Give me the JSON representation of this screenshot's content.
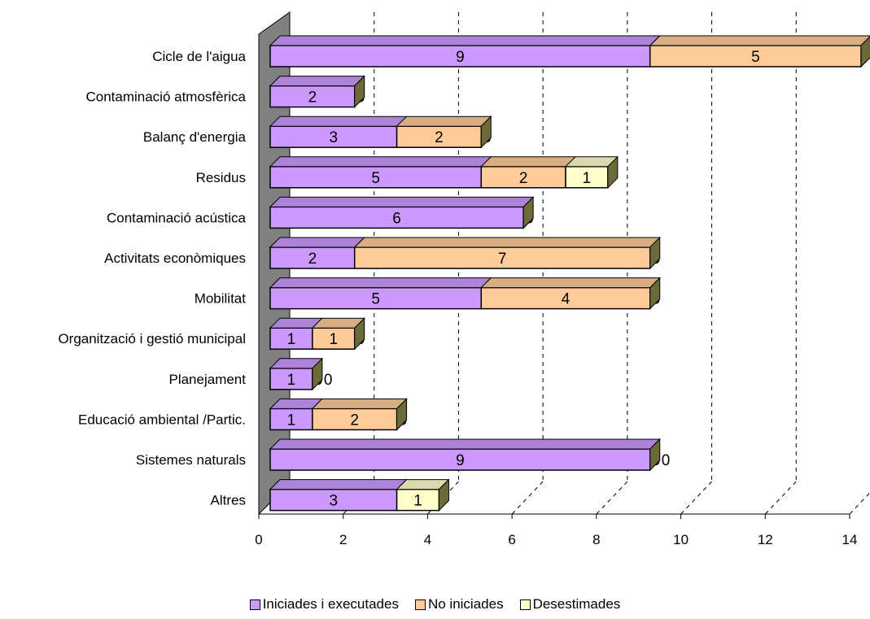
{
  "chart_data": {
    "type": "bar",
    "orientation": "horizontal",
    "stacked": true,
    "style": "3d",
    "categories": [
      "Cicle de l'aigua",
      "Contaminació atmosfèrica",
      "Balanç d'energia",
      "Residus",
      "Contaminació acústica",
      "Activitats econòmiques",
      "Mobilitat",
      "Organització i gestió municipal",
      "Planejament",
      "Educació ambiental /Partic.",
      "Sistemes naturals",
      "Altres"
    ],
    "series": [
      {
        "name": "Iniciades i executades",
        "color": "#cc99ff",
        "values": [
          9,
          2,
          3,
          5,
          6,
          2,
          5,
          1,
          1,
          1,
          9,
          3
        ]
      },
      {
        "name": "No iniciades",
        "color": "#ffcc99",
        "values": [
          5,
          0,
          2,
          2,
          0,
          7,
          4,
          1,
          0,
          2,
          0,
          0
        ]
      },
      {
        "name": "Desestimades",
        "color": "#ffffcc",
        "values": [
          0,
          0,
          0,
          1,
          0,
          0,
          0,
          0,
          0,
          0,
          0,
          1
        ]
      }
    ],
    "data_labels": [
      [
        "9",
        "5",
        ""
      ],
      [
        "2",
        "0",
        ""
      ],
      [
        "3",
        "2",
        "0"
      ],
      [
        "5",
        "2",
        "1"
      ],
      [
        "6",
        "0",
        ""
      ],
      [
        "2",
        "7",
        "0"
      ],
      [
        "5",
        "4",
        "0"
      ],
      [
        "1",
        "1",
        "0"
      ],
      [
        "1",
        "0",
        "0"
      ],
      [
        "1",
        "2",
        "0"
      ],
      [
        "9",
        "0",
        "0"
      ],
      [
        "3",
        "0",
        "1"
      ]
    ],
    "xlim": [
      0,
      14
    ],
    "xticks": [
      0,
      2,
      4,
      6,
      8,
      10,
      12,
      14
    ],
    "grid": "dashed vertical",
    "legend_position": "bottom"
  }
}
